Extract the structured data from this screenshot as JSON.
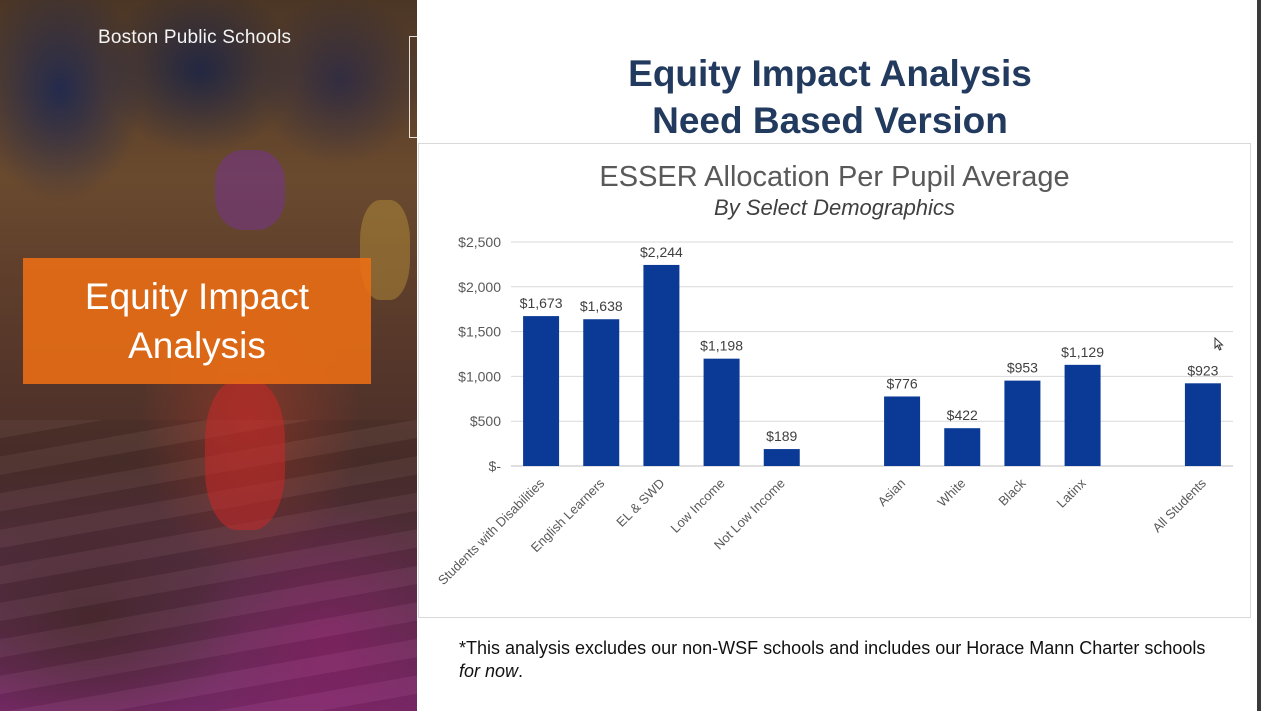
{
  "left_panel": {
    "brand": "Boston Public Schools",
    "callout": "Equity Impact Analysis"
  },
  "slide": {
    "title_line1": "Equity Impact Analysis",
    "title_line2": "Need Based Version",
    "footnote_main": "*This analysis excludes our non-WSF schools and includes our Horace Mann Charter schools ",
    "footnote_em": "for now",
    "footnote_end": "."
  },
  "colors": {
    "bar": "#0b3a96",
    "title_navy": "#223a5e",
    "callout_orange": "#ec6e14"
  },
  "chart_data": {
    "type": "bar",
    "title": "ESSER Allocation Per Pupil Average",
    "subtitle": "By Select Demographics",
    "xlabel": "",
    "ylabel": "",
    "ylim": [
      0,
      2500
    ],
    "y_ticks": [
      0,
      500,
      1000,
      1500,
      2000,
      2500
    ],
    "y_tick_labels": [
      "$-",
      "$500",
      "$1,000",
      "$1,500",
      "$2,000",
      "$2,500"
    ],
    "grid": true,
    "categories": [
      "Students with Disabilities",
      "English Learners",
      "EL & SWD",
      "Low Income",
      "Not Low Income",
      "",
      "Asian",
      "White",
      "Black",
      "Latinx",
      "",
      "All Students"
    ],
    "values": [
      1673,
      1638,
      2244,
      1198,
      189,
      null,
      776,
      422,
      953,
      1129,
      null,
      923
    ],
    "data_labels": [
      "$1,673",
      "$1,638",
      "$2,244",
      "$1,198",
      "$189",
      "",
      "$776",
      "$422",
      "$953",
      "$1,129",
      "",
      "$923"
    ]
  }
}
